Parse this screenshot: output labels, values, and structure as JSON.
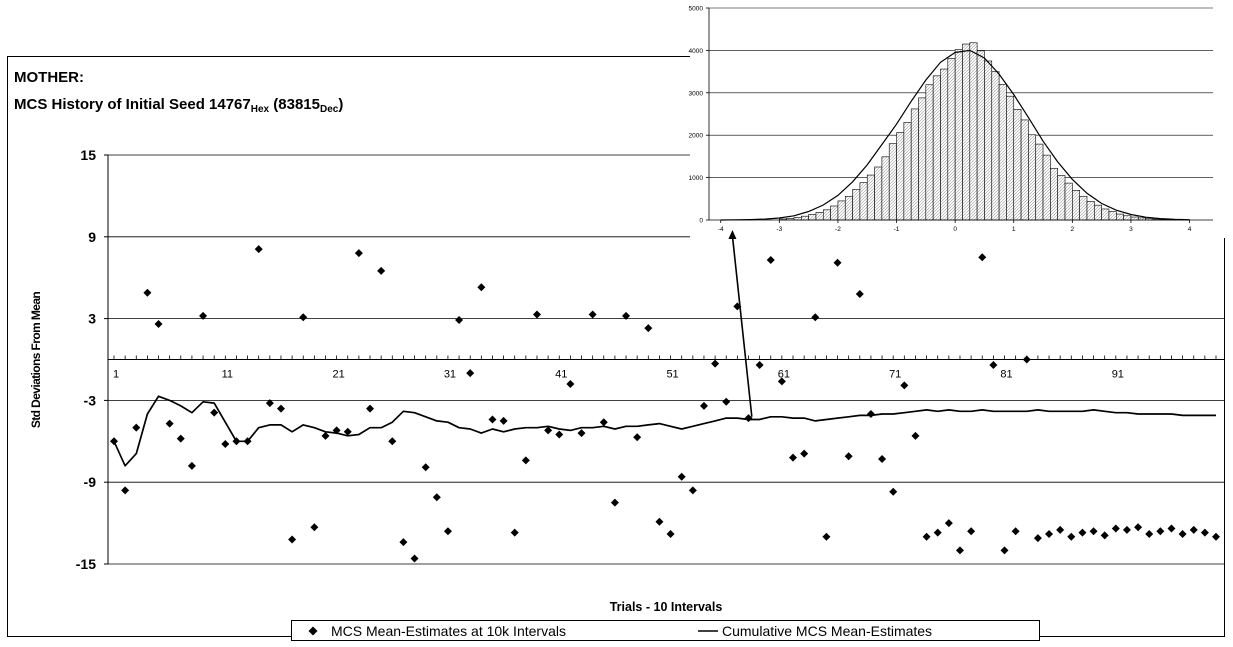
{
  "chart_data": [
    {
      "type": "scatter",
      "title_line1": "MOTHER:",
      "title_line2_prefix": "MCS History of Initial Seed 14767",
      "title_sub1": "Hex",
      "title_mid": " (83815",
      "title_sub2": "Dec",
      "title_end": ")",
      "xlabel": "Trials - 10 Intervals",
      "ylabel": "Std Deviations From Mean",
      "ylim": [
        -15,
        15
      ],
      "y_ticks": [
        15,
        9,
        3,
        -3,
        -9,
        -15
      ],
      "y_tick_labels": [
        "15",
        "9",
        "3",
        "-3",
        "-9",
        "-15"
      ],
      "xlim": [
        1,
        100
      ],
      "x_tick_values": [
        1,
        11,
        21,
        31,
        41,
        51,
        61,
        71,
        81,
        91
      ],
      "x_tick_labels": [
        "1",
        "11",
        "21",
        "31",
        "41",
        "51",
        "61",
        "71",
        "81",
        "91"
      ],
      "grid": true,
      "legend_position": "bottom",
      "series": [
        {
          "name": "MCS Mean-Estimates at 10k Intervals",
          "kind": "points",
          "color": "#000000",
          "x": [
            1,
            2,
            3,
            4,
            5,
            6,
            7,
            8,
            9,
            10,
            11,
            12,
            13,
            14,
            15,
            16,
            17,
            18,
            19,
            20,
            21,
            22,
            23,
            24,
            25,
            26,
            27,
            28,
            29,
            30,
            31,
            32,
            33,
            34,
            35,
            36,
            37,
            38,
            39,
            40,
            41,
            42,
            43,
            44,
            45,
            46,
            47,
            48,
            49,
            50,
            51,
            52,
            53,
            54,
            55,
            56,
            57,
            58,
            59,
            60,
            61,
            62,
            63,
            64,
            65,
            66,
            67,
            68,
            69,
            70,
            71,
            72,
            73,
            74,
            75,
            76,
            77,
            78,
            79,
            80,
            81,
            82,
            83,
            84,
            85,
            86,
            87,
            88,
            89,
            90,
            91,
            92,
            93,
            94,
            95,
            96,
            97,
            98,
            99,
            100
          ],
          "y": [
            -6.0,
            -9.6,
            -5.0,
            4.9,
            2.6,
            -4.7,
            -5.8,
            -7.8,
            3.2,
            -3.9,
            -6.2,
            -6.0,
            -6.0,
            8.1,
            -3.2,
            -3.6,
            -13.2,
            3.1,
            -12.3,
            -5.6,
            -5.2,
            -5.3,
            7.8,
            -3.6,
            6.5,
            -6.0,
            -13.4,
            -14.6,
            -7.9,
            -10.1,
            -12.6,
            2.9,
            -1.0,
            5.3,
            -4.4,
            -4.5,
            -12.7,
            -7.4,
            3.3,
            -5.2,
            -5.5,
            -1.8,
            -5.4,
            3.3,
            -4.6,
            -10.5,
            3.2,
            -5.7,
            2.3,
            -11.9,
            -12.8,
            -8.6,
            -9.6,
            -3.4,
            -0.3,
            -3.1,
            3.9,
            -4.3,
            -0.4,
            7.3,
            -1.6,
            -7.2,
            -6.9,
            3.1,
            -13.0,
            7.1,
            -7.1,
            4.8,
            -4.0,
            -7.3,
            -9.7,
            -1.9,
            -5.6,
            -13.0,
            -12.7,
            -12.0,
            -14.0,
            -12.6,
            7.5,
            -0.4,
            -14.0,
            -12.6,
            0.0,
            -13.1,
            -12.8,
            -12.5,
            -13.0,
            -12.7,
            -12.6,
            -12.9,
            -12.4,
            -12.5,
            -12.3,
            -12.8,
            -12.6,
            -12.4,
            -12.8,
            -12.5,
            -12.7,
            -13.0
          ]
        },
        {
          "name": "Cumulative MCS Mean-Estimates",
          "kind": "line",
          "color": "#000000",
          "x": [
            1,
            2,
            3,
            4,
            5,
            6,
            7,
            8,
            9,
            10,
            11,
            12,
            13,
            14,
            15,
            16,
            17,
            18,
            19,
            20,
            21,
            22,
            23,
            24,
            25,
            26,
            27,
            28,
            29,
            30,
            31,
            32,
            33,
            34,
            35,
            36,
            37,
            38,
            39,
            40,
            41,
            42,
            43,
            44,
            45,
            46,
            47,
            48,
            49,
            50,
            51,
            52,
            53,
            54,
            55,
            56,
            57,
            58,
            59,
            60,
            61,
            62,
            63,
            64,
            65,
            66,
            67,
            68,
            69,
            70,
            71,
            72,
            73,
            74,
            75,
            76,
            77,
            78,
            79,
            80,
            81,
            82,
            83,
            84,
            85,
            86,
            87,
            88,
            89,
            90,
            91,
            92,
            93,
            94,
            95,
            96,
            97,
            98,
            99,
            100
          ],
          "y": [
            -6.0,
            -7.8,
            -6.9,
            -4.0,
            -2.7,
            -3.0,
            -3.4,
            -3.9,
            -3.1,
            -3.2,
            -4.6,
            -6.0,
            -6.0,
            -5.0,
            -4.8,
            -4.8,
            -5.3,
            -4.8,
            -5.0,
            -5.3,
            -5.4,
            -5.6,
            -5.5,
            -5.0,
            -5.0,
            -4.6,
            -3.8,
            -3.9,
            -4.2,
            -4.5,
            -4.6,
            -5.0,
            -5.1,
            -5.4,
            -5.1,
            -5.3,
            -5.1,
            -5.0,
            -5.0,
            -4.9,
            -5.1,
            -5.2,
            -5.0,
            -5.0,
            -4.9,
            -5.1,
            -4.9,
            -4.9,
            -4.8,
            -4.7,
            -4.9,
            -5.1,
            -4.9,
            -4.7,
            -4.5,
            -4.3,
            -4.3,
            -4.4,
            -4.4,
            -4.2,
            -4.2,
            -4.3,
            -4.3,
            -4.5,
            -4.4,
            -4.3,
            -4.2,
            -4.1,
            -4.1,
            -4.0,
            -4.0,
            -3.9,
            -3.8,
            -3.7,
            -3.8,
            -3.7,
            -3.8,
            -3.8,
            -3.7,
            -3.8,
            -3.8,
            -3.8,
            -3.8,
            -3.7,
            -3.8,
            -3.8,
            -3.8,
            -3.8,
            -3.7,
            -3.8,
            -3.9,
            -3.9,
            -4.0,
            -4.0,
            -4.0,
            -4.0,
            -4.1,
            -4.1,
            -4.1,
            -4.1
          ]
        }
      ]
    },
    {
      "type": "bar",
      "title": "",
      "xlim": [
        -4.2,
        4.4
      ],
      "ylim": [
        0,
        5000
      ],
      "y_ticks": [
        0,
        1000,
        2000,
        3000,
        4000,
        5000
      ],
      "y_tick_labels": [
        "0",
        "1000",
        "2000",
        "3000",
        "4000",
        "5000"
      ],
      "x_ticks": [
        -4,
        -3,
        -2,
        -1,
        0,
        1,
        2,
        3,
        4
      ],
      "x_tick_labels": [
        "-4",
        "-3",
        "-2",
        "-1",
        "0",
        "1",
        "2",
        "3",
        "4"
      ],
      "bin_width": 0.125,
      "bin_starts": [
        -3.0,
        -2.875,
        -2.75,
        -2.625,
        -2.5,
        -2.375,
        -2.25,
        -2.125,
        -2.0,
        -1.875,
        -1.75,
        -1.625,
        -1.5,
        -1.375,
        -1.25,
        -1.125,
        -1.0,
        -0.875,
        -0.75,
        -0.625,
        -0.5,
        -0.375,
        -0.25,
        -0.125,
        0.0,
        0.125,
        0.25,
        0.375,
        0.5,
        0.625,
        0.75,
        0.875,
        1.0,
        1.125,
        1.25,
        1.375,
        1.5,
        1.625,
        1.75,
        1.875,
        2.0,
        2.125,
        2.25,
        2.375,
        2.5,
        2.625,
        2.75,
        2.875,
        3.0,
        3.125,
        3.25,
        3.375,
        3.5,
        3.625,
        3.75,
        3.875
      ],
      "values": [
        25,
        40,
        60,
        90,
        130,
        180,
        240,
        330,
        450,
        560,
        720,
        880,
        1060,
        1250,
        1490,
        1800,
        2060,
        2300,
        2620,
        2880,
        3190,
        3400,
        3560,
        3810,
        4020,
        4150,
        4180,
        3990,
        3750,
        3500,
        3200,
        2920,
        2610,
        2360,
        2010,
        1790,
        1530,
        1220,
        1050,
        870,
        700,
        560,
        440,
        350,
        260,
        200,
        140,
        100,
        70,
        50,
        35,
        22,
        15,
        10,
        6,
        4
      ],
      "fit_curve": "normal",
      "fit_x": [
        -4.0,
        -3.75,
        -3.5,
        -3.25,
        -3.0,
        -2.75,
        -2.5,
        -2.25,
        -2.0,
        -1.75,
        -1.5,
        -1.25,
        -1.0,
        -0.75,
        -0.5,
        -0.25,
        0.0,
        0.25,
        0.5,
        0.75,
        1.0,
        1.25,
        1.5,
        1.75,
        2.0,
        2.25,
        2.5,
        2.75,
        3.0,
        3.25,
        3.5,
        3.75,
        4.0
      ],
      "fit_y": [
        1,
        4,
        9,
        22,
        48,
        100,
        200,
        354,
        580,
        900,
        1300,
        1780,
        2260,
        2800,
        3300,
        3720,
        3950,
        4000,
        3820,
        3440,
        2960,
        2420,
        1860,
        1370,
        960,
        630,
        390,
        230,
        130,
        66,
        32,
        14,
        6
      ],
      "arrow_target_x": -3.8
    }
  ]
}
